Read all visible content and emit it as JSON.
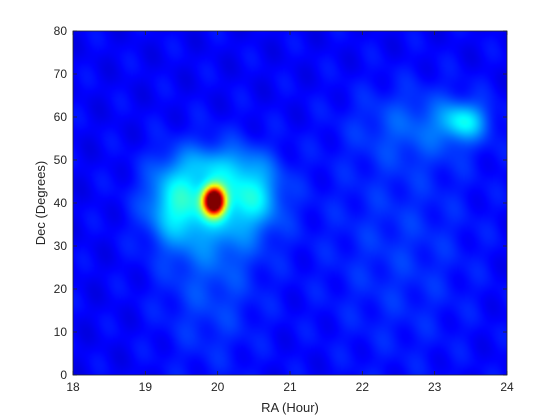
{
  "chart_data": {
    "type": "heatmap",
    "title": "",
    "xlabel": "RA (Hour)",
    "ylabel": "Dec (Degrees)",
    "xlim": [
      18,
      24
    ],
    "ylim": [
      0,
      80
    ],
    "xticks": [
      18,
      19,
      20,
      21,
      22,
      23,
      24
    ],
    "yticks": [
      0,
      10,
      20,
      30,
      40,
      50,
      60,
      70,
      80
    ],
    "colormap": "jet",
    "colorbar": false,
    "grid": false,
    "background_level": 0.12,
    "features": [
      {
        "ra": 19.95,
        "dec": 40.5,
        "intensity": 1.0,
        "sigma_ra": 0.1,
        "sigma_dec": 2.2,
        "kind": "peak"
      },
      {
        "ra": 19.95,
        "dec": 40.5,
        "intensity": 0.18,
        "sigma_ra": 0.55,
        "sigma_dec": 8.0,
        "kind": "halo"
      },
      {
        "ra": 19.4,
        "dec": 40.0,
        "intensity": 0.15,
        "sigma_ra": 0.25,
        "sigma_dec": 6.0,
        "kind": "sidelobe"
      },
      {
        "ra": 20.5,
        "dec": 42.0,
        "intensity": 0.14,
        "sigma_ra": 0.25,
        "sigma_dec": 5.0,
        "kind": "sidelobe"
      },
      {
        "ra": 20.0,
        "dec": 49.0,
        "intensity": 0.08,
        "sigma_ra": 0.4,
        "sigma_dec": 3.0,
        "kind": "sidelobe"
      },
      {
        "ra": 23.4,
        "dec": 59.0,
        "intensity": 0.2,
        "sigma_ra": 0.22,
        "sigma_dec": 3.0,
        "kind": "secondary"
      },
      {
        "ra": 22.8,
        "dec": 58.0,
        "intensity": 0.08,
        "sigma_ra": 0.6,
        "sigma_dec": 6.0,
        "kind": "secondary-halo"
      },
      {
        "ra": 19.9,
        "dec": 22.0,
        "intensity": 0.07,
        "sigma_ra": 0.5,
        "sigma_dec": 14.0,
        "kind": "streak"
      },
      {
        "ra": 22.5,
        "dec": 30.0,
        "intensity": 0.05,
        "sigma_ra": 0.8,
        "sigma_dec": 20.0,
        "kind": "diffuse"
      }
    ]
  }
}
